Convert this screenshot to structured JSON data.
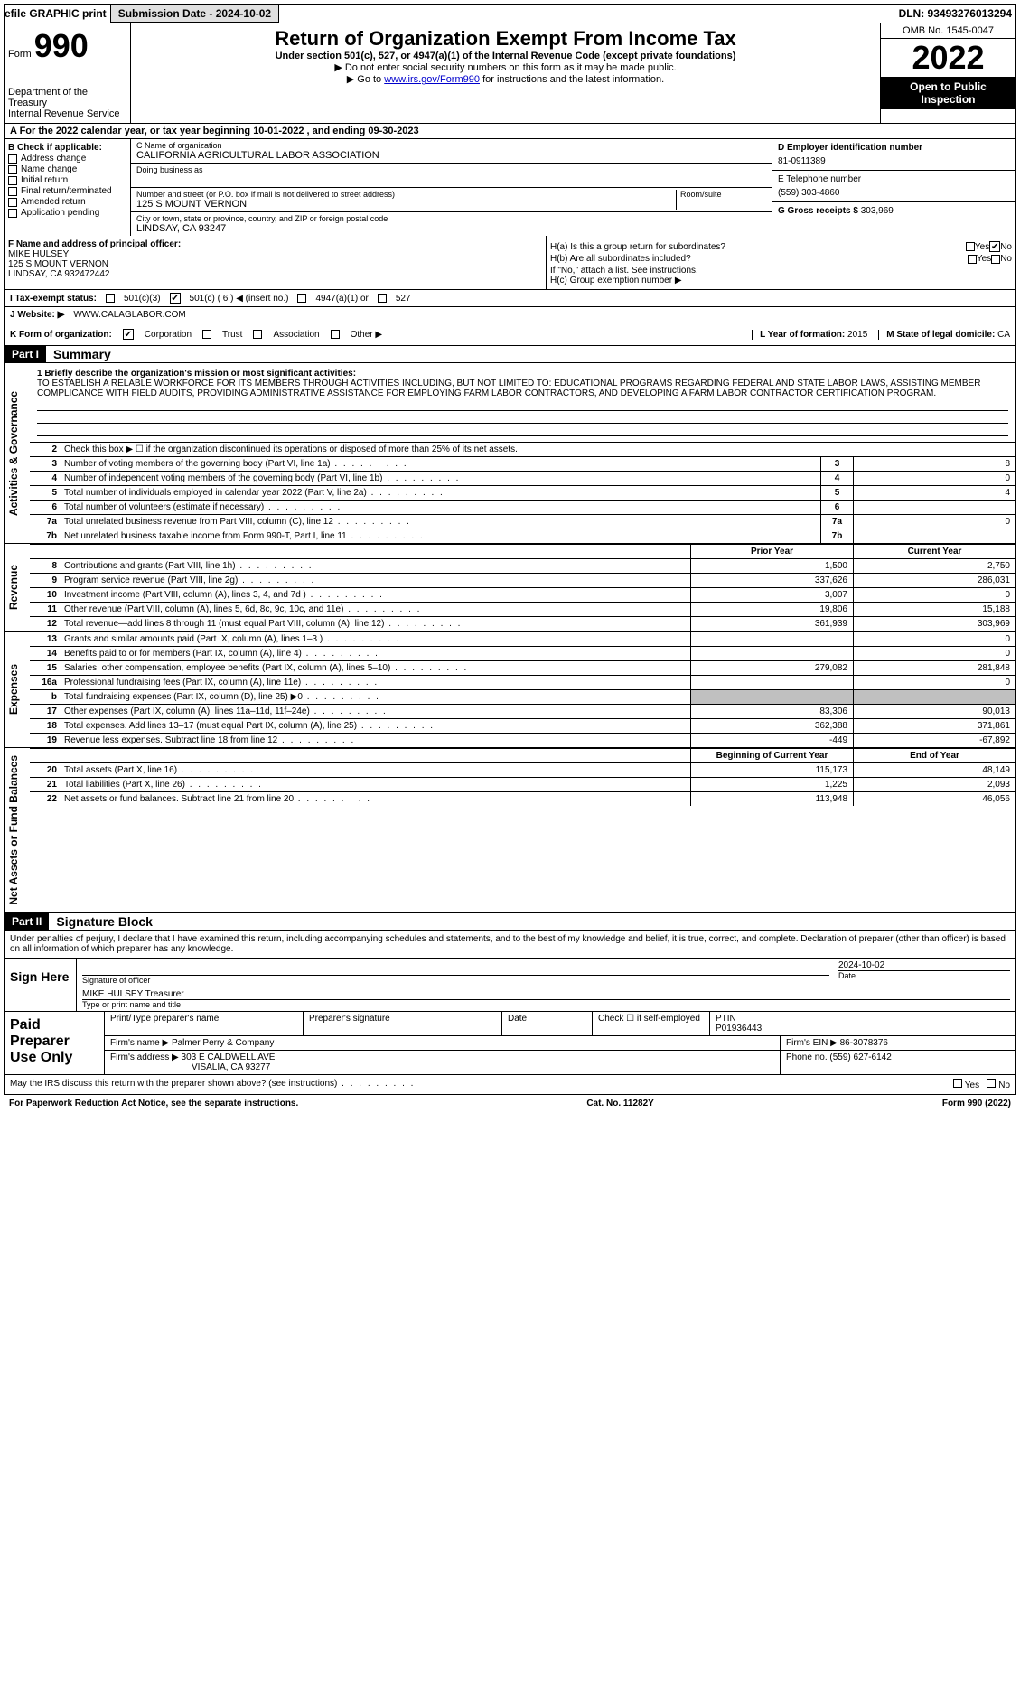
{
  "top": {
    "efile": "efile GRAPHIC print",
    "submission": "Submission Date - 2024-10-02",
    "dln": "DLN: 93493276013294"
  },
  "header": {
    "form": "Form",
    "num": "990",
    "dept": "Department of the Treasury",
    "irs": "Internal Revenue Service",
    "title": "Return of Organization Exempt From Income Tax",
    "sub": "Under section 501(c), 527, or 4947(a)(1) of the Internal Revenue Code (except private foundations)",
    "note1": "▶ Do not enter social security numbers on this form as it may be made public.",
    "note2_pre": "▶ Go to ",
    "link": "www.irs.gov/Form990",
    "note2_post": " for instructions and the latest information.",
    "omb": "OMB No. 1545-0047",
    "year": "2022",
    "open": "Open to Public Inspection"
  },
  "line_a": "A For the 2022 calendar year, or tax year beginning 10-01-2022    , and ending 09-30-2023",
  "b": {
    "label": "B Check if applicable:",
    "items": [
      "Address change",
      "Name change",
      "Initial return",
      "Final return/terminated",
      "Amended return",
      "Application pending"
    ]
  },
  "c": {
    "name_label": "C Name of organization",
    "name": "CALIFORNIA AGRICULTURAL LABOR ASSOCIATION",
    "dba_label": "Doing business as",
    "street_label": "Number and street (or P.O. box if mail is not delivered to street address)",
    "street": "125 S MOUNT VERNON",
    "room_label": "Room/suite",
    "city_label": "City or town, state or province, country, and ZIP or foreign postal code",
    "city": "LINDSAY, CA  93247"
  },
  "d": {
    "label": "D Employer identification number",
    "val": "81-0911389"
  },
  "e": {
    "label": "E Telephone number",
    "val": "(559) 303-4860"
  },
  "g": {
    "label": "G Gross receipts $",
    "val": "303,969"
  },
  "f": {
    "label": "F  Name and address of principal officer:",
    "name": "MIKE HULSEY",
    "street": "125 S MOUNT VERNON",
    "city": "LINDSAY, CA  932472442"
  },
  "h": {
    "a": "H(a)  Is this a group return for subordinates?",
    "b": "H(b)  Are all subordinates included?",
    "note": "If \"No,\" attach a list. See instructions.",
    "c": "H(c)  Group exemption number ▶",
    "yes": "Yes",
    "no": "No"
  },
  "i": {
    "label": "I    Tax-exempt status:",
    "o1": "501(c)(3)",
    "o2": "501(c) ( 6 ) ◀ (insert no.)",
    "o3": "4947(a)(1) or",
    "o4": "527"
  },
  "j": {
    "label": "J    Website: ▶",
    "val": "WWW.CALAGLABOR.COM"
  },
  "k": {
    "label": "K Form of organization:",
    "o1": "Corporation",
    "o2": "Trust",
    "o3": "Association",
    "o4": "Other ▶"
  },
  "l": {
    "label": "L Year of formation:",
    "val": "2015"
  },
  "m": {
    "label": "M State of legal domicile:",
    "val": "CA"
  },
  "part1": {
    "num": "Part I",
    "title": "Summary"
  },
  "mission": {
    "label": "1  Briefly describe the organization's mission or most significant activities:",
    "text": "TO ESTABLISH A RELABLE WORKFORCE FOR ITS MEMBERS THROUGH ACTIVITIES INCLUDING, BUT NOT LIMITED TO: EDUCATIONAL PROGRAMS REGARDING FEDERAL AND STATE LABOR LAWS, ASSISTING MEMBER COMPLICANCE WITH FIELD AUDITS, PROVIDING ADMINISTRATIVE ASSISTANCE FOR EMPLOYING FARM LABOR CONTRACTORS, AND DEVELOPING A FARM LABOR CONTRACTOR CERTIFICATION PROGRAM."
  },
  "gov": {
    "l2": "Check this box ▶ ☐  if the organization discontinued its operations or disposed of more than 25% of its net assets.",
    "l3": "Number of voting members of the governing body (Part VI, line 1a)",
    "l4": "Number of independent voting members of the governing body (Part VI, line 1b)",
    "l5": "Total number of individuals employed in calendar year 2022 (Part V, line 2a)",
    "l6": "Total number of volunteers (estimate if necessary)",
    "l7a": "Total unrelated business revenue from Part VIII, column (C), line 12",
    "l7b": "Net unrelated business taxable income from Form 990-T, Part I, line 11",
    "v3": "8",
    "v4": "0",
    "v5": "4",
    "v6": "",
    "v7a": "0",
    "v7b": ""
  },
  "vtabs": {
    "gov": "Activities & Governance",
    "rev": "Revenue",
    "exp": "Expenses",
    "net": "Net Assets or Fund Balances"
  },
  "fin_hdr": {
    "prior": "Prior Year",
    "curr": "Current Year",
    "beg": "Beginning of Current Year",
    "end": "End of Year"
  },
  "rev": [
    {
      "n": "8",
      "l": "Contributions and grants (Part VIII, line 1h)",
      "p": "1,500",
      "c": "2,750"
    },
    {
      "n": "9",
      "l": "Program service revenue (Part VIII, line 2g)",
      "p": "337,626",
      "c": "286,031"
    },
    {
      "n": "10",
      "l": "Investment income (Part VIII, column (A), lines 3, 4, and 7d )",
      "p": "3,007",
      "c": "0"
    },
    {
      "n": "11",
      "l": "Other revenue (Part VIII, column (A), lines 5, 6d, 8c, 9c, 10c, and 11e)",
      "p": "19,806",
      "c": "15,188"
    },
    {
      "n": "12",
      "l": "Total revenue—add lines 8 through 11 (must equal Part VIII, column (A), line 12)",
      "p": "361,939",
      "c": "303,969"
    }
  ],
  "exp": [
    {
      "n": "13",
      "l": "Grants and similar amounts paid (Part IX, column (A), lines 1–3 )",
      "p": "",
      "c": "0"
    },
    {
      "n": "14",
      "l": "Benefits paid to or for members (Part IX, column (A), line 4)",
      "p": "",
      "c": "0"
    },
    {
      "n": "15",
      "l": "Salaries, other compensation, employee benefits (Part IX, column (A), lines 5–10)",
      "p": "279,082",
      "c": "281,848"
    },
    {
      "n": "16a",
      "l": "Professional fundraising fees (Part IX, column (A), line 11e)",
      "p": "",
      "c": "0"
    },
    {
      "n": "b",
      "l": "Total fundraising expenses (Part IX, column (D), line 25) ▶0",
      "p": "GREY",
      "c": "GREY"
    },
    {
      "n": "17",
      "l": "Other expenses (Part IX, column (A), lines 11a–11d, 11f–24e)",
      "p": "83,306",
      "c": "90,013"
    },
    {
      "n": "18",
      "l": "Total expenses. Add lines 13–17 (must equal Part IX, column (A), line 25)",
      "p": "362,388",
      "c": "371,861"
    },
    {
      "n": "19",
      "l": "Revenue less expenses. Subtract line 18 from line 12",
      "p": "-449",
      "c": "-67,892"
    }
  ],
  "net": [
    {
      "n": "20",
      "l": "Total assets (Part X, line 16)",
      "p": "115,173",
      "c": "48,149"
    },
    {
      "n": "21",
      "l": "Total liabilities (Part X, line 26)",
      "p": "1,225",
      "c": "2,093"
    },
    {
      "n": "22",
      "l": "Net assets or fund balances. Subtract line 21 from line 20",
      "p": "113,948",
      "c": "46,056"
    }
  ],
  "part2": {
    "num": "Part II",
    "title": "Signature Block"
  },
  "sig": {
    "decl": "Under penalties of perjury, I declare that I have examined this return, including accompanying schedules and statements, and to the best of my knowledge and belief, it is true, correct, and complete. Declaration of preparer (other than officer) is based on all information of which preparer has any knowledge.",
    "sign_here": "Sign Here",
    "sig_officer": "Signature of officer",
    "date": "Date",
    "date_val": "2024-10-02",
    "name": "MIKE HULSEY  Treasurer",
    "name_label": "Type or print name and title"
  },
  "paid": {
    "title": "Paid Preparer Use Only",
    "h1": "Print/Type preparer's name",
    "h2": "Preparer's signature",
    "h3": "Date",
    "h4": "Check ☐ if self-employed",
    "h5": "PTIN",
    "ptin": "P01936443",
    "firm_label": "Firm's name    ▶",
    "firm": "Palmer Perry & Company",
    "ein_label": "Firm's EIN ▶",
    "ein": "86-3078376",
    "addr_label": "Firm's address ▶",
    "addr1": "303 E CALDWELL AVE",
    "addr2": "VISALIA, CA  93277",
    "phone_label": "Phone no.",
    "phone": "(559) 627-6142"
  },
  "footer": {
    "discuss": "May the IRS discuss this return with the preparer shown above? (see instructions)",
    "pra": "For Paperwork Reduction Act Notice, see the separate instructions.",
    "cat": "Cat. No. 11282Y",
    "form": "Form 990 (2022)"
  }
}
